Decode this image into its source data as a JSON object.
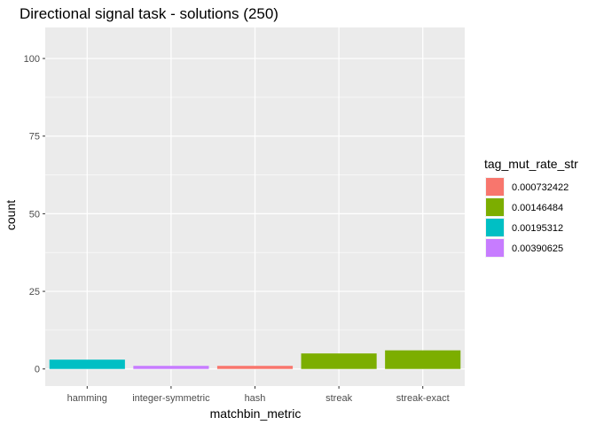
{
  "chart_data": {
    "type": "bar",
    "title": "Directional signal task - solutions (250)",
    "xlabel": "matchbin_metric",
    "ylabel": "count",
    "ylim": [
      -5.5,
      110
    ],
    "yticks": [
      0,
      25,
      50,
      75,
      100
    ],
    "categories": [
      "hamming",
      "integer-symmetric",
      "hash",
      "streak",
      "streak-exact"
    ],
    "values": [
      3,
      1,
      1,
      5,
      6
    ],
    "fill_group": [
      "0.00195312",
      "0.00390625",
      "0.000732422",
      "0.00146484",
      "0.00146484"
    ],
    "legend": {
      "title": "tag_mut_rate_str",
      "position": "right",
      "entries": [
        {
          "label": "0.000732422",
          "color": "#F8766D"
        },
        {
          "label": "0.00146484",
          "color": "#7CAE00"
        },
        {
          "label": "0.00195312",
          "color": "#00BFC4"
        },
        {
          "label": "0.00390625",
          "color": "#C77CFF"
        }
      ]
    },
    "grid": true,
    "panel_background": "#EBEBEB"
  }
}
